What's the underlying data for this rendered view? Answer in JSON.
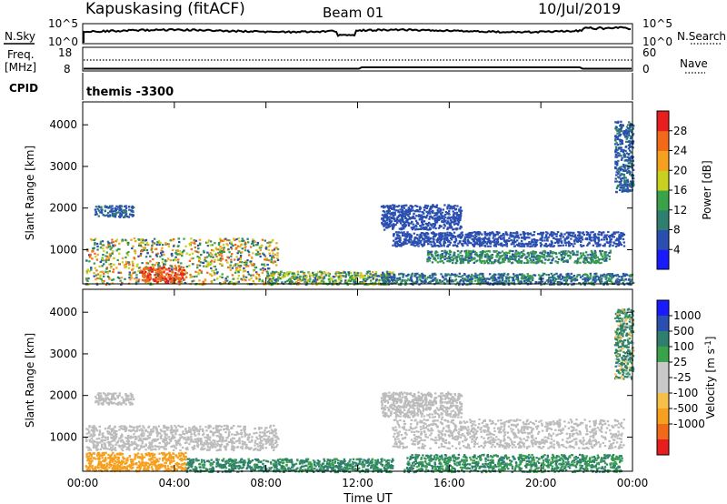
{
  "header": {
    "station": "Kapuskasing (fitACF)",
    "beam": "Beam 01",
    "date": "10/Jul/2019"
  },
  "top_panels": {
    "nsky": {
      "label": "N.Sky",
      "left_ticks": [
        "10^5",
        "10^0"
      ],
      "right_ticks": [
        "10^5",
        "10^0"
      ],
      "right_label": "N.Search"
    },
    "freq": {
      "label_line1": "Freq.",
      "label_line2": "[MHz]",
      "left_ticks": [
        "18",
        "8"
      ],
      "right_ticks": [
        "60",
        "0"
      ],
      "right_label": "Nave"
    },
    "cpid": {
      "label": "CPID",
      "value": "themis -3300"
    }
  },
  "colors": {
    "power_scale": [
      "#1a1aff",
      "#2a4fb0",
      "#2e7f6e",
      "#3aa34a",
      "#c8d21e",
      "#f5a01e",
      "#f06a1a",
      "#e81e1e"
    ],
    "velocity_scale": [
      "#e81e1e",
      "#f06a1a",
      "#f5a01e",
      "#f5c04a",
      "#c8c8c8",
      "#c8c8c8",
      "#3aa34a",
      "#2e7f6e",
      "#2a4fb0",
      "#1a1aff"
    ],
    "ground_scatter": "#bcbcbc"
  },
  "chart_data": [
    {
      "type": "heatmap",
      "name": "power",
      "xlabel": "",
      "ylabel": "Slant Range [km]",
      "x_ticks": [
        "00:00",
        "04:00",
        "08:00",
        "12:00",
        "16:00",
        "20:00",
        "00:00"
      ],
      "y_ticks": [
        1000,
        2000,
        3000,
        4000
      ],
      "xlim": [
        0,
        24
      ],
      "ylim": [
        180,
        4550
      ],
      "colorbar": {
        "label": "Power [dB]",
        "ticks": [
          4,
          8,
          12,
          16,
          20,
          24,
          28
        ],
        "range": [
          0,
          32
        ]
      },
      "regions": [
        {
          "x": [
            0.1,
            8.5
          ],
          "y": [
            180,
            1300
          ],
          "v": [
            6,
            28
          ]
        },
        {
          "x": [
            0.5,
            2.2
          ],
          "y": [
            1800,
            2080
          ],
          "v": [
            4,
            10
          ]
        },
        {
          "x": [
            2.5,
            4.4
          ],
          "y": [
            230,
            600
          ],
          "v": [
            24,
            30
          ]
        },
        {
          "x": [
            8.0,
            13.5
          ],
          "y": [
            180,
            500
          ],
          "v": [
            6,
            22
          ]
        },
        {
          "x": [
            13.0,
            16.5
          ],
          "y": [
            1500,
            2100
          ],
          "v": [
            4,
            8
          ]
        },
        {
          "x": [
            13.5,
            23.6
          ],
          "y": [
            1100,
            1450
          ],
          "v": [
            4,
            8
          ]
        },
        {
          "x": [
            15.0,
            23.0
          ],
          "y": [
            700,
            1000
          ],
          "v": [
            6,
            16
          ]
        },
        {
          "x": [
            13.0,
            24.0
          ],
          "y": [
            180,
            450
          ],
          "v": [
            4,
            14
          ]
        },
        {
          "x": [
            23.2,
            24.0
          ],
          "y": [
            2400,
            4100
          ],
          "v": [
            4,
            10
          ]
        }
      ]
    },
    {
      "type": "heatmap",
      "name": "velocity",
      "xlabel": "Time UT",
      "ylabel": "Slant Range [km]",
      "x_ticks": [
        "00:00",
        "04:00",
        "08:00",
        "12:00",
        "16:00",
        "20:00",
        "00:00"
      ],
      "y_ticks": [
        1000,
        2000,
        3000,
        4000
      ],
      "xlim": [
        0,
        24
      ],
      "ylim": [
        180,
        4550
      ],
      "colorbar": {
        "label": "Velocity [m s^-1]",
        "ticks": [
          1000,
          500,
          100,
          25,
          -25,
          -100,
          -500,
          -1000
        ]
      },
      "regions": [
        {
          "x": [
            0.1,
            8.5
          ],
          "y": [
            700,
            1300
          ],
          "v": "ground"
        },
        {
          "x": [
            0.5,
            2.2
          ],
          "y": [
            1800,
            2080
          ],
          "v": "ground"
        },
        {
          "x": [
            0.1,
            4.5
          ],
          "y": [
            200,
            650
          ],
          "v": [
            -500,
            -100
          ]
        },
        {
          "x": [
            4.5,
            13.5
          ],
          "y": [
            180,
            500
          ],
          "v": [
            25,
            300
          ]
        },
        {
          "x": [
            13.0,
            16.5
          ],
          "y": [
            1500,
            2100
          ],
          "v": "ground"
        },
        {
          "x": [
            13.5,
            23.6
          ],
          "y": [
            750,
            1450
          ],
          "v": "ground"
        },
        {
          "x": [
            14.0,
            23.5
          ],
          "y": [
            180,
            600
          ],
          "v": [
            25,
            200
          ]
        },
        {
          "x": [
            23.2,
            24.0
          ],
          "y": [
            2400,
            4100
          ],
          "v": [
            -100,
            500
          ]
        }
      ]
    }
  ]
}
